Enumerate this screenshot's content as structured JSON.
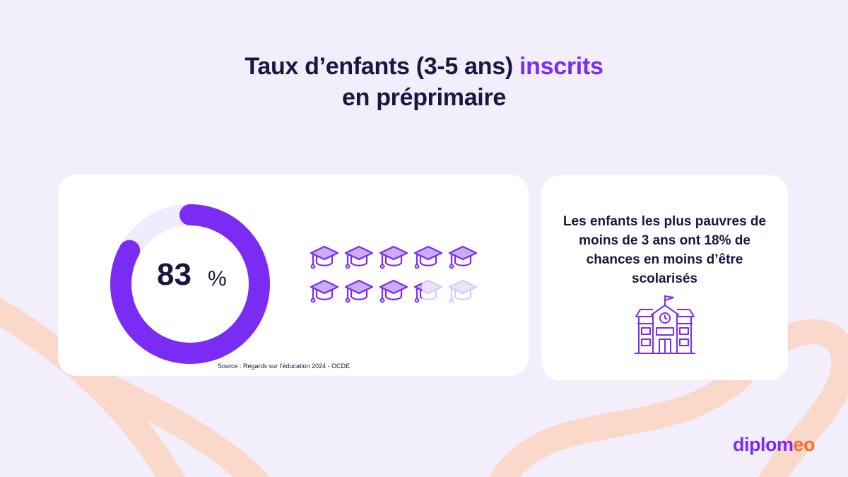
{
  "title": {
    "line1_prefix": "Taux d’enfants (3-5 ans) ",
    "line1_accent": "inscrits",
    "line2": "en préprimaire"
  },
  "chart_data": {
    "type": "donut",
    "value": 83,
    "max": 100,
    "value_label": "83",
    "unit_label": "%",
    "icon_pictogram": {
      "icon": "graduation-cap-icon",
      "total": 10,
      "filled": 8.3
    },
    "colors": {
      "filled": "#7a2cf5",
      "track": "#f1ecfb",
      "icon_empty": "#d9c8fb"
    }
  },
  "source": "Source : Regards sur l’éducation 2024 - OCDE",
  "side_card": {
    "text": "Les enfants les plus pauvres de moins de 3 ans ont 18% de chances en moins d’être scolarisés",
    "icon": "school-building-icon"
  },
  "logo": {
    "part1": "diplom",
    "part2": "eo"
  },
  "colors": {
    "accent": "#7a2cf5",
    "text": "#1d1440",
    "background": "#f3eefb",
    "curve": "#fad9cb",
    "logo_orange": "#ff6b2c"
  }
}
